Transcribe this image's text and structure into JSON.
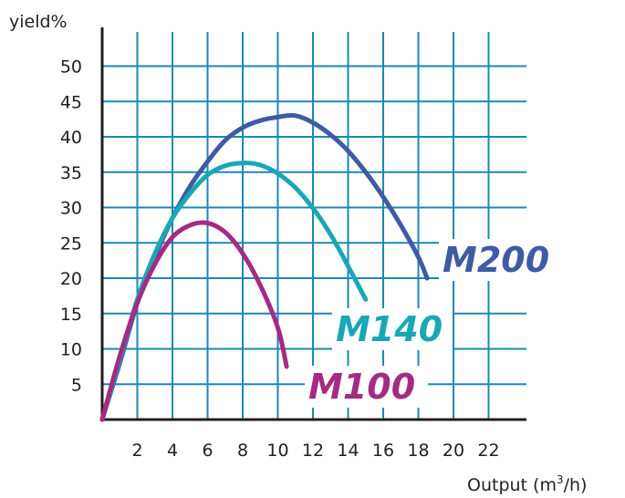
{
  "chart_data": {
    "type": "line",
    "ylabel": "yield%",
    "xlabel": "Output (m",
    "xlabel_sup": "3",
    "xlabel_end": "/h)",
    "xlim": [
      0,
      24
    ],
    "ylim": [
      0,
      51
    ],
    "x_ticks": [
      2,
      4,
      6,
      8,
      10,
      12,
      14,
      16,
      18,
      20,
      22
    ],
    "y_ticks": [
      5,
      10,
      15,
      20,
      25,
      30,
      35,
      40,
      45,
      50
    ],
    "grid": true,
    "grid_color": "#1a88b8",
    "series": [
      {
        "name": "M200",
        "color": "#3e5ba3",
        "points": [
          [
            0,
            0
          ],
          [
            1,
            8
          ],
          [
            2,
            16.5
          ],
          [
            3,
            23
          ],
          [
            4,
            28.5
          ],
          [
            5,
            33
          ],
          [
            6,
            36.5
          ],
          [
            7,
            39.5
          ],
          [
            8,
            41.3
          ],
          [
            9,
            42.3
          ],
          [
            10,
            42.8
          ],
          [
            11,
            43
          ],
          [
            12,
            42
          ],
          [
            13,
            40.3
          ],
          [
            14,
            38
          ],
          [
            15,
            35
          ],
          [
            16,
            31.5
          ],
          [
            17,
            27.5
          ],
          [
            18,
            23
          ],
          [
            18.5,
            20
          ]
        ]
      },
      {
        "name": "M140",
        "color": "#1aa7b5",
        "points": [
          [
            0,
            0
          ],
          [
            1,
            8.5
          ],
          [
            2,
            17
          ],
          [
            3,
            23.5
          ],
          [
            4,
            28.5
          ],
          [
            5,
            32
          ],
          [
            6,
            34.6
          ],
          [
            7,
            35.9
          ],
          [
            8,
            36.3
          ],
          [
            9,
            36
          ],
          [
            10,
            34.8
          ],
          [
            11,
            32.8
          ],
          [
            12,
            29.9
          ],
          [
            13,
            26.2
          ],
          [
            14,
            21.7
          ],
          [
            15,
            17
          ]
        ]
      },
      {
        "name": "M100",
        "color": "#a52a82",
        "points": [
          [
            0,
            0
          ],
          [
            1,
            9
          ],
          [
            2,
            16.5
          ],
          [
            3,
            22
          ],
          [
            4,
            25.8
          ],
          [
            5,
            27.5
          ],
          [
            6,
            27.8
          ],
          [
            7,
            26.5
          ],
          [
            8,
            23.5
          ],
          [
            9,
            19
          ],
          [
            10,
            13
          ],
          [
            10.5,
            7.5
          ]
        ]
      }
    ]
  }
}
